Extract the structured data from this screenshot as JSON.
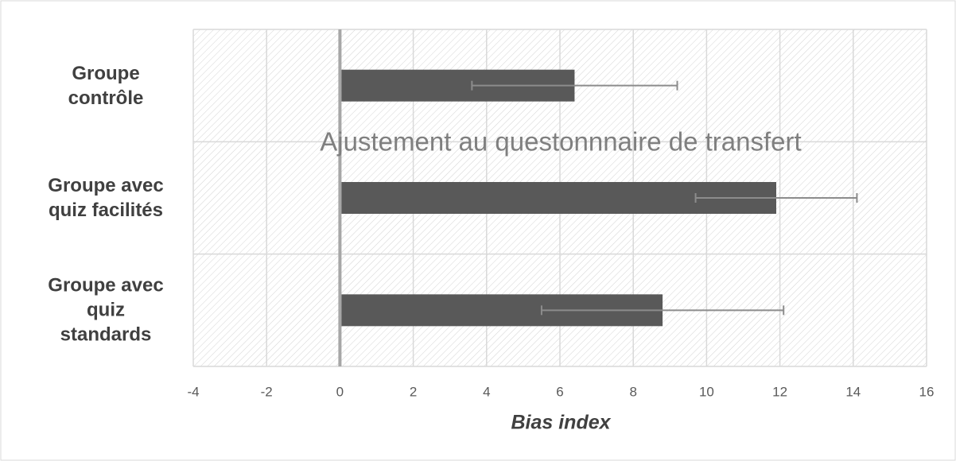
{
  "chart_data": {
    "type": "bar",
    "orientation": "horizontal",
    "title": "Ajustement au questonnnaire de transfert",
    "xlabel": "Bias index",
    "categories": [
      "Groupe contrôle",
      "Groupe avec quiz facilités",
      "Groupe avec quiz standards"
    ],
    "values": [
      6.4,
      11.9,
      8.8
    ],
    "errors": [
      2.8,
      2.2,
      3.3
    ],
    "color": "#595959",
    "error_color": "#8c8c8c",
    "xlim": [
      -4,
      16
    ],
    "xticks": [
      -4,
      -2,
      0,
      2,
      4,
      6,
      8,
      10,
      12,
      14,
      16
    ],
    "grid": true
  }
}
